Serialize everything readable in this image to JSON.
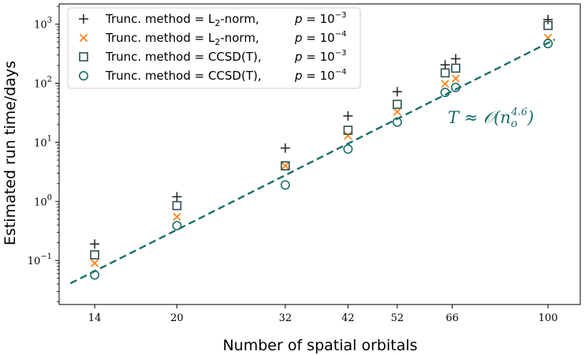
{
  "chart_data": {
    "type": "scatter",
    "title": "",
    "xlabel": "Number of spatial orbitals",
    "ylabel": "Estimated run time/days",
    "xscale": "log",
    "yscale": "log",
    "xlim": [
      12,
      115
    ],
    "ylim": [
      0.018,
      2200
    ],
    "x_ticks": [
      14,
      20,
      32,
      42,
      52,
      66,
      100
    ],
    "x_tick_labels": [
      "14",
      "20",
      "32",
      "42",
      "52",
      "66",
      "100"
    ],
    "y_ticks": [
      0.1,
      1,
      10,
      100,
      1000
    ],
    "y_tick_labels": [
      {
        "base": "10",
        "exp": "−1"
      },
      {
        "base": "10",
        "exp": "0"
      },
      {
        "base": "10",
        "exp": "1"
      },
      {
        "base": "10",
        "exp": "2"
      },
      {
        "base": "10",
        "exp": "3"
      }
    ],
    "legend_position": "top-left",
    "series": [
      {
        "name": "Trunc. method = L2-norm, p = 10^-3",
        "legend_label": "Trunc. method = L",
        "legend_sub": "2",
        "legend_suffix": "-norm,",
        "p_exp": "−3",
        "marker": "plus",
        "color": "#222222",
        "x": [
          14,
          20,
          32,
          42,
          52,
          64,
          67,
          100
        ],
        "y": [
          0.19,
          1.2,
          8,
          28,
          72,
          205,
          260,
          1200
        ]
      },
      {
        "name": "Trunc. method = L2-norm, p = 10^-4",
        "legend_label": "Trunc. method = L",
        "legend_sub": "2",
        "legend_suffix": "-norm,",
        "p_exp": "−4",
        "marker": "x",
        "color": "#ff7f0e",
        "x": [
          14,
          20,
          32,
          42,
          52,
          64,
          67,
          100
        ],
        "y": [
          0.09,
          0.55,
          4,
          13,
          33,
          98,
          120,
          590
        ]
      },
      {
        "name": "Trunc. method = CCSD(T), p = 10^-3",
        "legend_label": "Trunc. method = CCSD(T),",
        "legend_sub": "",
        "legend_suffix": "",
        "p_exp": "−3",
        "marker": "square",
        "color": "#2f4f4f",
        "x": [
          14,
          20,
          32,
          42,
          52,
          64,
          67,
          100
        ],
        "y": [
          0.125,
          0.85,
          4,
          16,
          44,
          150,
          180,
          950
        ]
      },
      {
        "name": "Trunc. method = CCSD(T), p = 10^-4",
        "legend_label": "Trunc. method = CCSD(T),",
        "legend_sub": "",
        "legend_suffix": "",
        "p_exp": "−4",
        "marker": "circle",
        "color": "#1a6e68",
        "x": [
          14,
          20,
          32,
          42,
          52,
          64,
          67,
          100
        ],
        "y": [
          0.057,
          0.39,
          1.9,
          7.7,
          22,
          70,
          85,
          470
        ]
      }
    ],
    "fit_line": {
      "label_prefix": "T ≈ ",
      "label_main": "𝒪(n",
      "label_sub": "o",
      "label_sup": "4.6",
      "label_close": ")",
      "color": "#1a6e68",
      "x": [
        12.6,
        103
      ],
      "y": [
        0.041,
        550
      ]
    }
  }
}
